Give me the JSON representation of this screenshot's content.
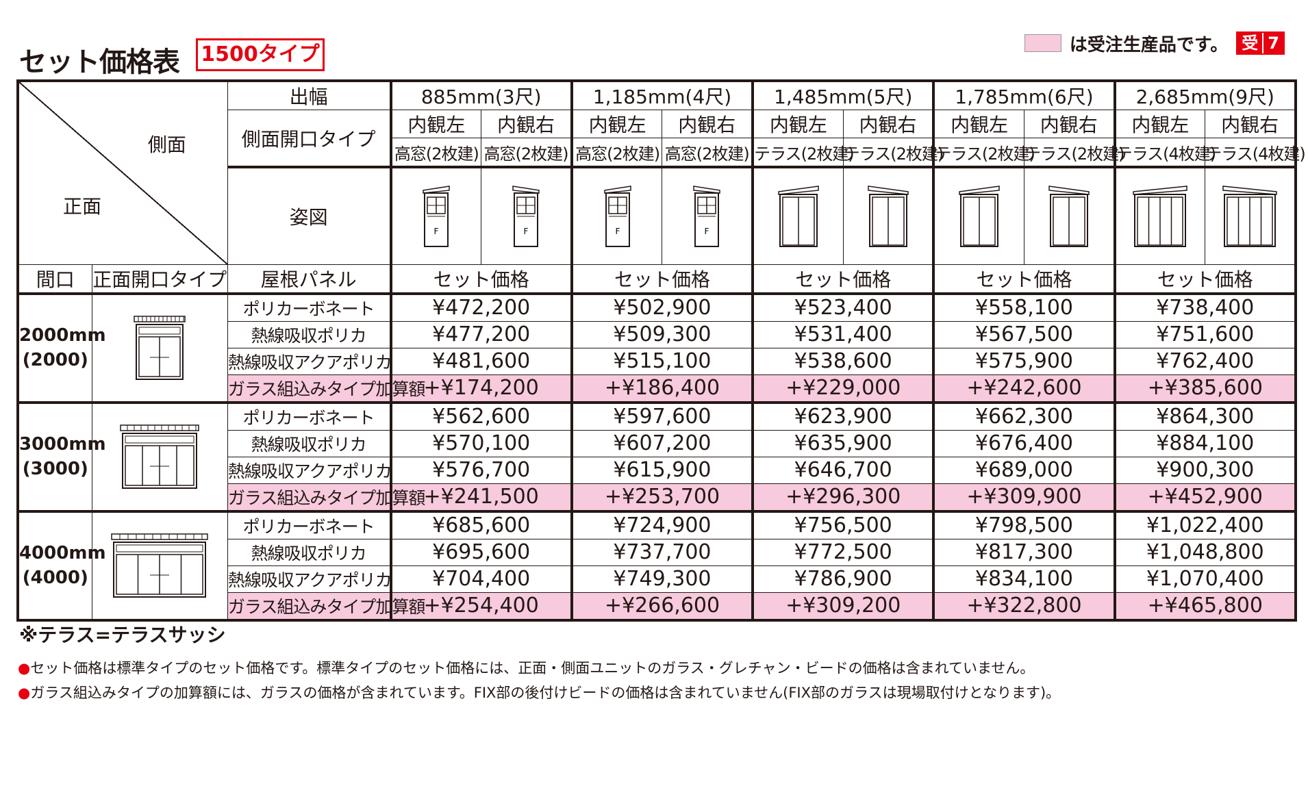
{
  "title": "セット価格表",
  "type_tag": "1500タイプ",
  "legend": {
    "text": "は受注生産品です。",
    "badge_left": "受",
    "badge_right": "7",
    "swatch_color": "#f7cadd"
  },
  "header": {
    "corner_top": "側面",
    "corner_bottom": "正面",
    "width_label": "出幅",
    "side_type_label": "側面開口タイプ",
    "figure_label": "姿図",
    "frontage_label": "間口",
    "front_type_label": "正面開口タイプ",
    "roof_label": "屋根パネル",
    "columns": [
      {
        "width": "885mm(3尺)",
        "left": "内観左",
        "right": "内観右",
        "left_type": "高窓(2枚建)",
        "right_type": "高窓(2枚建)",
        "price_label": "セット価格",
        "figure": "high-window-icon"
      },
      {
        "width": "1,185mm(4尺)",
        "left": "内観左",
        "right": "内観右",
        "left_type": "高窓(2枚建)",
        "right_type": "高窓(2枚建)",
        "price_label": "セット価格",
        "figure": "high-window-icon"
      },
      {
        "width": "1,485mm(5尺)",
        "left": "内観左",
        "right": "内観右",
        "left_type": "テラス(2枚建)",
        "right_type": "テラス(2枚建)",
        "price_label": "セット価格",
        "figure": "terrace-2-icon"
      },
      {
        "width": "1,785mm(6尺)",
        "left": "内観左",
        "right": "内観右",
        "left_type": "テラス(2枚建)",
        "right_type": "テラス(2枚建)",
        "price_label": "セット価格",
        "figure": "terrace-2-icon"
      },
      {
        "width": "2,685mm(9尺)",
        "left": "内観左",
        "right": "内観右",
        "left_type": "テラス(4枚建)",
        "right_type": "テラス(4枚建)",
        "price_label": "セット価格",
        "figure": "terrace-4-icon"
      }
    ],
    "fix_mark": "F"
  },
  "groups": [
    {
      "size": "2000mm",
      "size_sub": "(2000)",
      "icon": "front-2-panel-icon",
      "rows": [
        {
          "panel": "ポリカーボネート",
          "prices": [
            "¥472,200",
            "¥502,900",
            "¥523,400",
            "¥558,100",
            "¥738,400"
          ]
        },
        {
          "panel": "熱線吸収ポリカ",
          "prices": [
            "¥477,200",
            "¥509,300",
            "¥531,400",
            "¥567,500",
            "¥751,600"
          ]
        },
        {
          "panel": "熱線吸収アクアポリカ",
          "prices": [
            "¥481,600",
            "¥515,100",
            "¥538,600",
            "¥575,900",
            "¥762,400"
          ]
        },
        {
          "panel": "ガラス組込みタイプ加算額",
          "prices": [
            "+¥174,200",
            "+¥186,400",
            "+¥229,000",
            "+¥242,600",
            "+¥385,600"
          ]
        }
      ]
    },
    {
      "size": "3000mm",
      "size_sub": "(3000)",
      "icon": "front-4-panel-icon",
      "rows": [
        {
          "panel": "ポリカーボネート",
          "prices": [
            "¥562,600",
            "¥597,600",
            "¥623,900",
            "¥662,300",
            "¥864,300"
          ]
        },
        {
          "panel": "熱線吸収ポリカ",
          "prices": [
            "¥570,100",
            "¥607,200",
            "¥635,900",
            "¥676,400",
            "¥884,100"
          ]
        },
        {
          "panel": "熱線吸収アクアポリカ",
          "prices": [
            "¥576,700",
            "¥615,900",
            "¥646,700",
            "¥689,000",
            "¥900,300"
          ]
        },
        {
          "panel": "ガラス組込みタイプ加算額",
          "prices": [
            "+¥241,500",
            "+¥253,700",
            "+¥296,300",
            "+¥309,900",
            "+¥452,900"
          ]
        }
      ]
    },
    {
      "size": "4000mm",
      "size_sub": "(4000)",
      "icon": "front-4-panel-wide-icon",
      "rows": [
        {
          "panel": "ポリカーボネート",
          "prices": [
            "¥685,600",
            "¥724,900",
            "¥756,500",
            "¥798,500",
            "¥1,022,400"
          ]
        },
        {
          "panel": "熱線吸収ポリカ",
          "prices": [
            "¥695,600",
            "¥737,700",
            "¥772,500",
            "¥817,300",
            "¥1,048,800"
          ]
        },
        {
          "panel": "熱線吸収アクアポリカ",
          "prices": [
            "¥704,400",
            "¥749,300",
            "¥786,900",
            "¥834,100",
            "¥1,070,400"
          ]
        },
        {
          "panel": "ガラス組込みタイプ加算額",
          "prices": [
            "+¥254,400",
            "+¥266,600",
            "+¥309,200",
            "+¥322,800",
            "+¥465,800"
          ]
        }
      ]
    }
  ],
  "terrace_note": "※テラス=テラスサッシ",
  "notes": [
    "セット価格は標準タイプのセット価格です。標準タイプのセット価格には、正面・側面ユニットのガラス・グレチャン・ビードの価格は含まれていません。",
    "ガラス組込みタイプの加算額には、ガラスの価格が含まれています。FIX部の後付けビードの価格は含まれていません(FIX部のガラスは現場取付けとなります)。"
  ]
}
